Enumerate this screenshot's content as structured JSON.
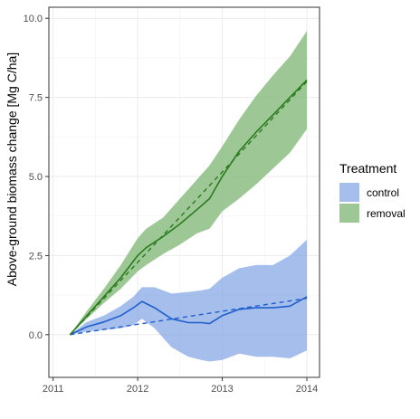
{
  "chart_data": {
    "type": "line",
    "title": "",
    "xlabel": "",
    "ylabel": "Above-ground biomass change [Mg C/ha]",
    "xlim": [
      2010.95,
      2014.15
    ],
    "ylim": [
      -1.35,
      10.35
    ],
    "x_ticks": [
      2011,
      2012,
      2013,
      2014
    ],
    "x_tick_labels": [
      "2011",
      "2012",
      "2013",
      "2014"
    ],
    "y_ticks": [
      0,
      2.5,
      5,
      7.5,
      10
    ],
    "y_tick_labels": [
      "0.0",
      "2.5",
      "5.0",
      "7.5",
      "10.0"
    ],
    "grid": true,
    "legend": {
      "title": "Treatment",
      "position": "right"
    },
    "series": [
      {
        "name": "control",
        "color": "#1f5fcc",
        "band_color": "#7fa2e3",
        "x": [
          2011.2,
          2011.4,
          2011.6,
          2011.8,
          2011.95,
          2012.05,
          2012.2,
          2012.4,
          2012.6,
          2012.75,
          2012.85,
          2013.0,
          2013.2,
          2013.4,
          2013.6,
          2013.8,
          2014.0
        ],
        "values": [
          0.0,
          0.25,
          0.4,
          0.6,
          0.85,
          1.05,
          0.85,
          0.5,
          0.38,
          0.38,
          0.35,
          0.6,
          0.8,
          0.85,
          0.85,
          0.9,
          1.2
        ],
        "lower": [
          0.0,
          0.1,
          0.15,
          0.2,
          0.3,
          0.5,
          0.2,
          -0.4,
          -0.7,
          -0.8,
          -0.85,
          -0.8,
          -0.6,
          -0.7,
          -0.7,
          -0.75,
          -0.5
        ],
        "upper": [
          0.0,
          0.4,
          0.6,
          0.9,
          1.2,
          1.5,
          1.5,
          1.3,
          1.35,
          1.4,
          1.45,
          1.8,
          2.1,
          2.2,
          2.2,
          2.5,
          3.0
        ],
        "trend": {
          "x": [
            2011.2,
            2014.0
          ],
          "y": [
            0.0,
            1.15
          ]
        }
      },
      {
        "name": "removal",
        "color": "#2a7a1e",
        "band_color": "#84ba7b",
        "x": [
          2011.2,
          2011.4,
          2011.6,
          2011.8,
          2012.0,
          2012.1,
          2012.3,
          2012.5,
          2012.7,
          2012.85,
          2013.0,
          2013.2,
          2013.4,
          2013.6,
          2013.8,
          2014.0
        ],
        "values": [
          0.0,
          0.6,
          1.2,
          1.8,
          2.5,
          2.75,
          3.1,
          3.5,
          3.95,
          4.3,
          5.0,
          5.8,
          6.4,
          6.95,
          7.5,
          8.05
        ],
        "lower": [
          0.0,
          0.5,
          1.0,
          1.45,
          2.0,
          2.2,
          2.55,
          2.85,
          3.2,
          3.35,
          3.9,
          4.3,
          4.75,
          5.25,
          5.75,
          6.5
        ],
        "upper": [
          0.0,
          0.75,
          1.45,
          2.2,
          3.05,
          3.35,
          3.7,
          4.3,
          4.9,
          5.35,
          5.95,
          6.8,
          7.55,
          8.2,
          8.8,
          9.6
        ],
        "trend": {
          "x": [
            2011.2,
            2014.0
          ],
          "y": [
            0.0,
            8.0
          ]
        }
      }
    ]
  }
}
